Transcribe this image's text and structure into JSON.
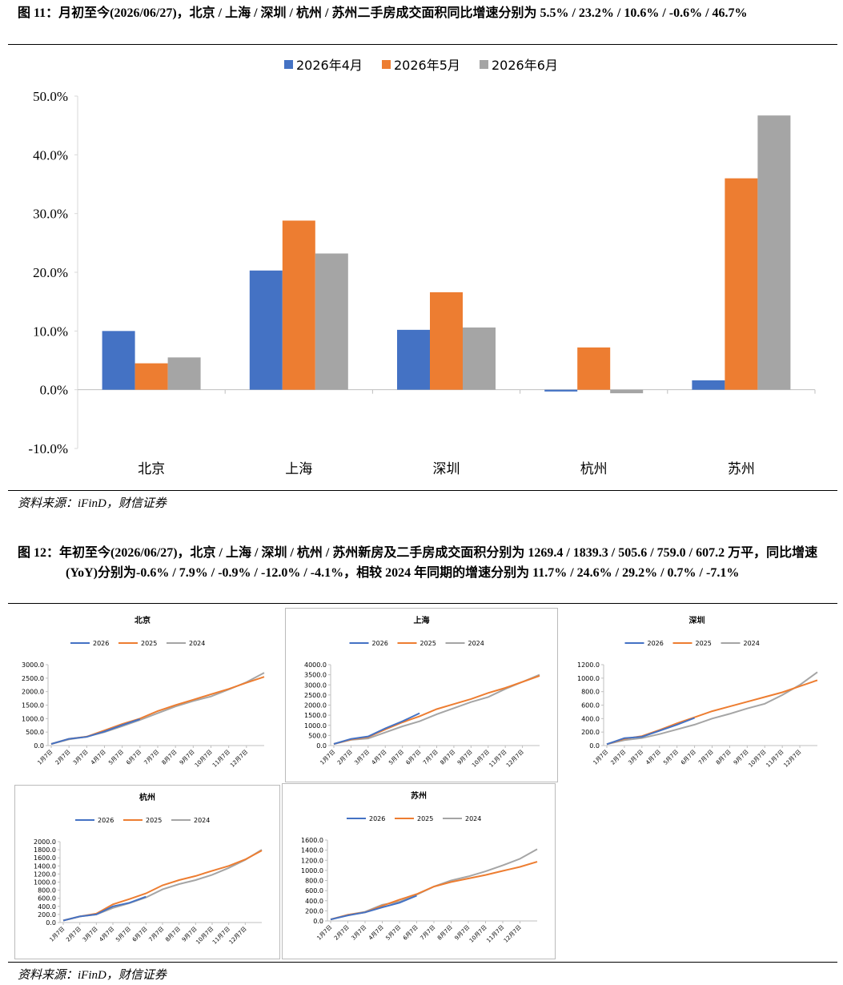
{
  "fig11_caption": "图 11：月初至今(2026/06/27)，北京 / 上海 / 深圳 / 杭州 / 苏州二手房成交面积同比增速分别为 5.5% / 23.2% / 10.6% / -0.6% / 46.7%",
  "fig11_source": "资料来源：iFinD，财信证券",
  "fig12_caption": "图 12：年初至今(2026/06/27)，北京 / 上海 / 深圳 / 杭州 / 苏州新房及二手房成交面积分别为 1269.4 / 1839.3 / 505.6 / 759.0 / 607.2 万平，同比增速(YoY)分别为-0.6% / 7.9% / -0.9% / -12.0% / -4.1%，相较 2024 年同期的增速分别为 11.7% / 24.6% / 29.2% / 0.7% / -7.1%",
  "fig12_source": "资料来源：iFinD，财信证券",
  "chart_data": [
    {
      "type": "bar",
      "categories": [
        "北京",
        "上海",
        "深圳",
        "杭州",
        "苏州"
      ],
      "series": [
        {
          "name": "2026年4月",
          "color": "#4472c4",
          "values": [
            10.0,
            20.3,
            10.2,
            -0.3,
            1.6
          ]
        },
        {
          "name": "2026年5月",
          "color": "#ed7d31",
          "values": [
            4.5,
            28.8,
            16.6,
            7.2,
            36.0
          ]
        },
        {
          "name": "2026年6月",
          "color": "#a5a5a5",
          "values": [
            5.5,
            23.2,
            10.6,
            -0.6,
            46.7
          ]
        }
      ],
      "ylim": [
        -10,
        50
      ],
      "yticks": [
        {
          "value": -10,
          "label": "-10.0%"
        },
        {
          "value": 0,
          "label": "0.0%"
        },
        {
          "value": 10,
          "label": "10.0%"
        },
        {
          "value": 20,
          "label": "20.0%"
        },
        {
          "value": 30,
          "label": "30.0%"
        },
        {
          "value": 40,
          "label": "40.0%"
        },
        {
          "value": 50,
          "label": "50.0%"
        }
      ],
      "legend": "top"
    },
    {
      "type": "line",
      "title": "北京",
      "categories": [
        "1月7日",
        "2月7日",
        "3月7日",
        "4月7日",
        "5月7日",
        "6月7日",
        "7月7日",
        "8月7日",
        "9月7日",
        "10月7日",
        "11月7日",
        "12月7日",
        null
      ],
      "series": [
        {
          "name": "2026",
          "color": "#4472c4",
          "values": [
            60,
            250,
            320,
            520,
            760,
            980,
            null,
            null,
            null,
            null,
            null,
            null,
            null
          ]
        },
        {
          "name": "2025",
          "color": "#ed7d31",
          "values": [
            60,
            250,
            330,
            560,
            800,
            1000,
            1280,
            1500,
            1700,
            1900,
            2100,
            2330,
            2550
          ]
        },
        {
          "name": "2024",
          "color": "#a5a5a5",
          "values": [
            60,
            230,
            330,
            500,
            720,
            950,
            1200,
            1450,
            1650,
            1820,
            2080,
            2350,
            2700
          ]
        }
      ],
      "ylim": [
        0,
        3000
      ],
      "yticks": [
        {
          "value": 0,
          "label": "0.0"
        },
        {
          "value": 500,
          "label": "500.0"
        },
        {
          "value": 1000,
          "label": "1000.0"
        },
        {
          "value": 1500,
          "label": "1500.0"
        },
        {
          "value": 2000,
          "label": "2000.0"
        },
        {
          "value": 2500,
          "label": "2500.0"
        },
        {
          "value": 3000,
          "label": "3000.0"
        }
      ]
    },
    {
      "type": "line",
      "title": "上海",
      "categories": [
        "1月7日",
        "2月7日",
        "3月7日",
        "4月7日",
        "5月7日",
        "6月7日",
        "7月7日",
        "8月7日",
        "9月7日",
        "10月7日",
        "11月7日",
        "12月7日",
        null
      ],
      "series": [
        {
          "name": "2026",
          "color": "#4472c4",
          "values": [
            80,
            330,
            450,
            850,
            1200,
            1600,
            null,
            null,
            null,
            null,
            null,
            null,
            null
          ]
        },
        {
          "name": "2025",
          "color": "#ed7d31",
          "values": [
            80,
            300,
            420,
            800,
            1150,
            1450,
            1800,
            2050,
            2300,
            2600,
            2850,
            3150,
            3450
          ]
        },
        {
          "name": "2024",
          "color": "#a5a5a5",
          "values": [
            80,
            280,
            350,
            650,
            950,
            1200,
            1550,
            1850,
            2150,
            2400,
            2800,
            3150,
            3500
          ]
        }
      ],
      "ylim": [
        0,
        4000
      ],
      "yticks": [
        {
          "value": 0,
          "label": "0.0"
        },
        {
          "value": 500,
          "label": "500.0"
        },
        {
          "value": 1000,
          "label": "1000.0"
        },
        {
          "value": 1500,
          "label": "1500.0"
        },
        {
          "value": 2000,
          "label": "2000.0"
        },
        {
          "value": 2500,
          "label": "2500.0"
        },
        {
          "value": 3000,
          "label": "3000.0"
        },
        {
          "value": 3500,
          "label": "3500.0"
        },
        {
          "value": 4000,
          "label": "4000.0"
        }
      ]
    },
    {
      "type": "line",
      "title": "深圳",
      "categories": [
        "1月7日",
        "2月7日",
        "3月7日",
        "4月7日",
        "5月7日",
        "6月7日",
        "7月7日",
        "8月7日",
        "9月7日",
        "10月7日",
        "11月7日",
        "12月7日",
        null
      ],
      "series": [
        {
          "name": "2026",
          "color": "#4472c4",
          "values": [
            20,
            110,
            130,
            220,
            310,
            410,
            null,
            null,
            null,
            null,
            null,
            null,
            null
          ]
        },
        {
          "name": "2025",
          "color": "#ed7d31",
          "values": [
            20,
            100,
            140,
            230,
            330,
            420,
            510,
            580,
            650,
            720,
            790,
            880,
            970
          ]
        },
        {
          "name": "2024",
          "color": "#a5a5a5",
          "values": [
            20,
            80,
            110,
            170,
            240,
            310,
            400,
            470,
            550,
            620,
            750,
            900,
            1090
          ]
        }
      ],
      "ylim": [
        0,
        1200
      ],
      "yticks": [
        {
          "value": 0,
          "label": "0.0"
        },
        {
          "value": 200,
          "label": "200.0"
        },
        {
          "value": 400,
          "label": "400.0"
        },
        {
          "value": 600,
          "label": "600.0"
        },
        {
          "value": 800,
          "label": "800.0"
        },
        {
          "value": 1000,
          "label": "1000.0"
        },
        {
          "value": 1200,
          "label": "1200.0"
        }
      ]
    },
    {
      "type": "line",
      "title": "杭州",
      "categories": [
        "1月7日",
        "2月7日",
        "3月7日",
        "4月7日",
        "5月7日",
        "6月7日",
        "7月7日",
        "8月7日",
        "9月7日",
        "10月7日",
        "11月7日",
        "12月7日",
        null
      ],
      "series": [
        {
          "name": "2026",
          "color": "#4472c4",
          "values": [
            50,
            150,
            200,
            400,
            490,
            640,
            null,
            null,
            null,
            null,
            null,
            null,
            null
          ]
        },
        {
          "name": "2025",
          "color": "#ed7d31",
          "values": [
            50,
            150,
            220,
            450,
            580,
            720,
            920,
            1050,
            1150,
            1280,
            1400,
            1560,
            1780
          ]
        },
        {
          "name": "2024",
          "color": "#a5a5a5",
          "values": [
            50,
            150,
            200,
            360,
            480,
            620,
            820,
            950,
            1050,
            1180,
            1350,
            1550,
            1800
          ]
        }
      ],
      "ylim": [
        0,
        2000
      ],
      "yticks": [
        {
          "value": 0,
          "label": "0.0"
        },
        {
          "value": 200,
          "label": "200.0"
        },
        {
          "value": 400,
          "label": "400.0"
        },
        {
          "value": 600,
          "label": "600.0"
        },
        {
          "value": 800,
          "label": "800.0"
        },
        {
          "value": 1000,
          "label": "1000.0"
        },
        {
          "value": 1200,
          "label": "1200.0"
        },
        {
          "value": 1400,
          "label": "1400.0"
        },
        {
          "value": 1600,
          "label": "1600.0"
        },
        {
          "value": 1800,
          "label": "1800.0"
        },
        {
          "value": 2000,
          "label": "2000.0"
        }
      ]
    },
    {
      "type": "line",
      "title": "苏州",
      "categories": [
        "1月7日",
        "2月7日",
        "3月7日",
        "4月7日",
        "5月7日",
        "6月7日",
        "7月7日",
        "8月7日",
        "9月7日",
        "10月7日",
        "11月7日",
        "12月7日",
        null
      ],
      "series": [
        {
          "name": "2026",
          "color": "#4472c4",
          "values": [
            30,
            110,
            170,
            270,
            360,
            500,
            null,
            null,
            null,
            null,
            null,
            null,
            null
          ]
        },
        {
          "name": "2025",
          "color": "#ed7d31",
          "values": [
            30,
            120,
            170,
            300,
            420,
            530,
            680,
            770,
            840,
            910,
            990,
            1070,
            1170
          ]
        },
        {
          "name": "2024",
          "color": "#a5a5a5",
          "values": [
            30,
            120,
            180,
            320,
            380,
            520,
            680,
            800,
            880,
            980,
            1100,
            1230,
            1420
          ]
        }
      ],
      "ylim": [
        0,
        1600
      ],
      "yticks": [
        {
          "value": 0,
          "label": "0.0"
        },
        {
          "value": 200,
          "label": "200.0"
        },
        {
          "value": 400,
          "label": "400.0"
        },
        {
          "value": 600,
          "label": "600.0"
        },
        {
          "value": 800,
          "label": "800.0"
        },
        {
          "value": 1000,
          "label": "1000.0"
        },
        {
          "value": 1200,
          "label": "1200.0"
        },
        {
          "value": 1400,
          "label": "1400.0"
        },
        {
          "value": 1600,
          "label": "1600.0"
        }
      ]
    }
  ]
}
